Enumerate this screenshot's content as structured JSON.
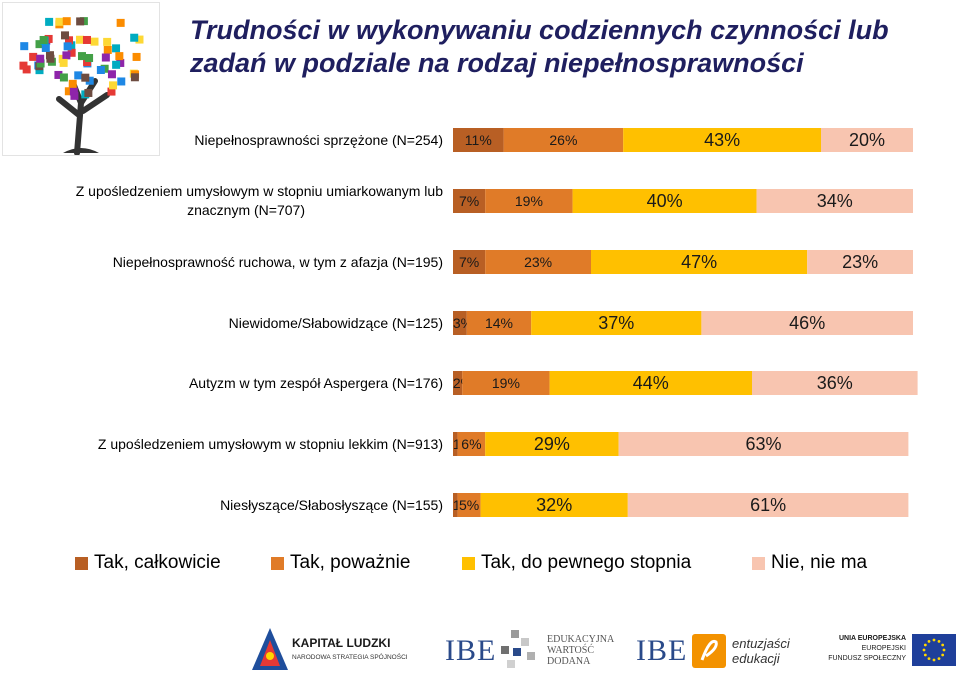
{
  "chart_data": {
    "type": "bar",
    "orientation": "horizontal",
    "stacked": true,
    "title": "Trudności w wykonywaniu codziennych czynności lub zadań w podziale na rodzaj niepełnosprawności",
    "categories": [
      "Niepełnosprawności sprzężone (N=254)",
      "Z upośledzeniem umysłowym w stopniu umiarkowanym lub znacznym (N=707)",
      "Niepełnosprawność ruchowa, w tym z afazja (N=195)",
      "Niewidome/Słabowidzące (N=125)",
      "Autyzm w tym zespół Aspergera (N=176)",
      "Z upośledzeniem umysłowym w stopniu lekkim (N=913)",
      "Niesłyszące/Słabosłyszące (N=155)"
    ],
    "series": [
      {
        "name": "Tak, całkowicie",
        "color": "#b85f24",
        "values": [
          11,
          7,
          7,
          3,
          2,
          1,
          1
        ]
      },
      {
        "name": "Tak, poważnie",
        "color": "#e07b28",
        "values": [
          26,
          19,
          23,
          14,
          19,
          6,
          5
        ]
      },
      {
        "name": "Tak, do pewnego stopnia",
        "color": "#ffc000",
        "values": [
          43,
          40,
          47,
          37,
          44,
          29,
          32
        ]
      },
      {
        "name": "Nie, nie ma",
        "color": "#f8c5b0",
        "values": [
          20,
          34,
          23,
          46,
          36,
          63,
          61
        ]
      }
    ],
    "xlim": [
      0,
      100
    ],
    "value_suffix": "%",
    "legend_position": "bottom"
  },
  "logos": {
    "kapital_ludzki": {
      "line1": "KAPITAŁ LUDZKI",
      "line2": "NARODOWA STRATEGIA SPÓJNOŚCI"
    },
    "ibe_edukacyjna": {
      "mark": "IBE",
      "line1": "EDUKACYJNA",
      "line2": "WARTOŚĆ",
      "line3": "DODANA"
    },
    "ibe_entuzjasci": {
      "mark": "IBE",
      "line1": "entuzjaści",
      "line2": "edukacji"
    },
    "ue": {
      "line1": "UNIA EUROPEJSKA",
      "line2": "EUROPEJSKI",
      "line3": "FUNDUSZ SPOŁECZNY"
    }
  }
}
